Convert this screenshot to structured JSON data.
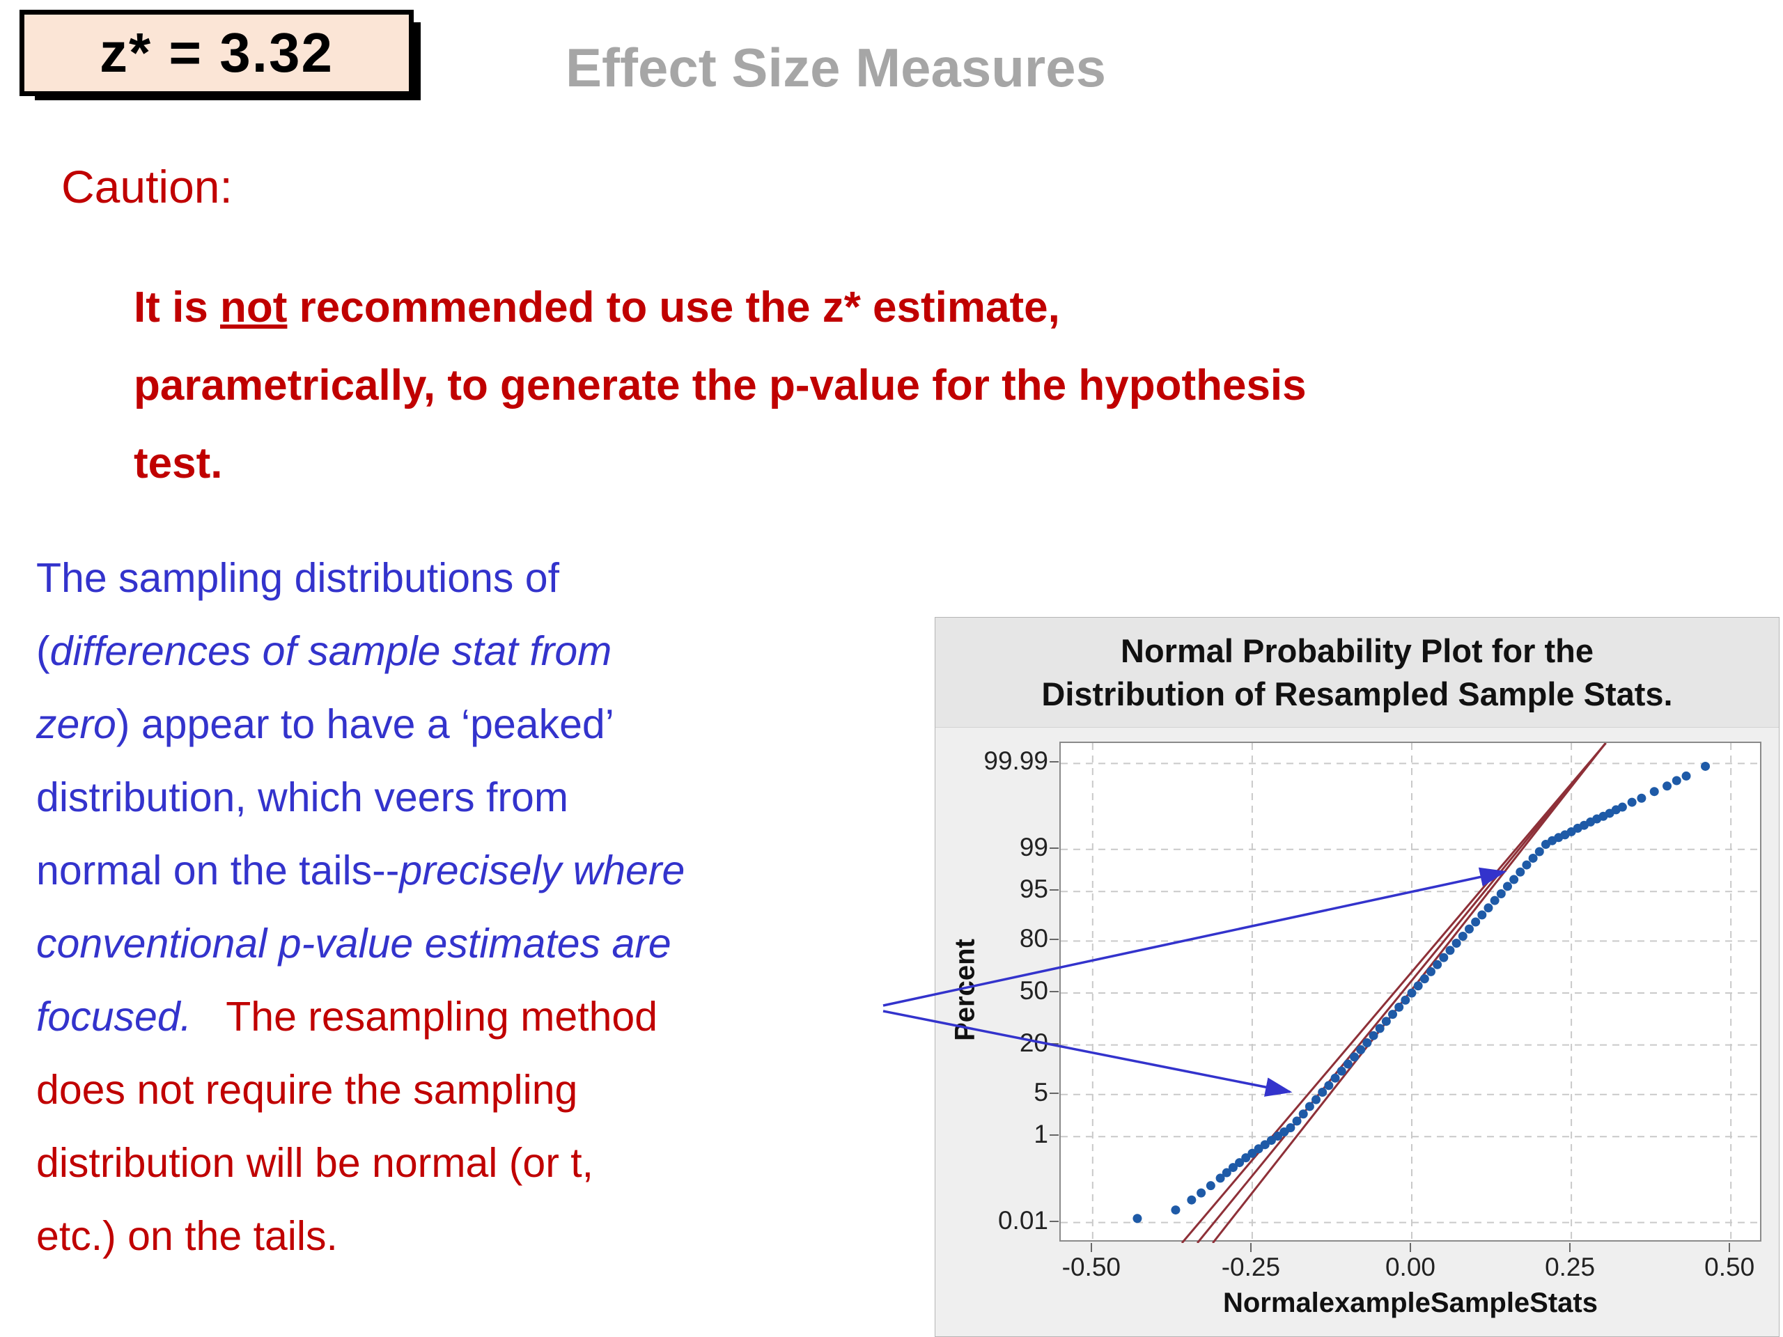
{
  "slide": {
    "z_box": "z* = 3.32",
    "title": "Effect Size Measures",
    "caution_label": "Caution:",
    "caution_lines": [
      [
        {
          "t": "It is "
        },
        {
          "t": "not",
          "u": true
        },
        {
          "t": " recommended to use the z* estimate,"
        }
      ],
      [
        {
          "t": "parametrically, to generate the p-value for the hypothesis"
        }
      ],
      [
        {
          "t": "test."
        }
      ]
    ],
    "body_lines": [
      [
        {
          "t": "The sampling distributions of",
          "c": "blue"
        }
      ],
      [
        {
          "t": "(",
          "c": "blue"
        },
        {
          "t": "differences of sample stat from",
          "c": "blue",
          "i": true
        }
      ],
      [
        {
          "t": "zero",
          "c": "blue",
          "i": true
        },
        {
          "t": ") appear to have a ‘peaked’",
          "c": "blue"
        }
      ],
      [
        {
          "t": "distribution, which veers from",
          "c": "blue"
        }
      ],
      [
        {
          "t": "normal on the tails--",
          "c": "blue"
        },
        {
          "t": "precisely where",
          "c": "blue",
          "i": true
        }
      ],
      [
        {
          "t": "conventional p-value estimates are",
          "c": "blue",
          "i": true
        }
      ],
      [
        {
          "t": "focused.",
          "c": "blue",
          "i": true
        },
        {
          "t": "   The resampling method",
          "c": "red"
        }
      ],
      [
        {
          "t": "does not require the sampling",
          "c": "red"
        }
      ],
      [
        {
          "t": "distribution will be normal (or t,",
          "c": "red"
        }
      ],
      [
        {
          "t": "etc.) on the tails.",
          "c": "red"
        }
      ]
    ]
  },
  "colors": {
    "accent_red": "#c00000",
    "accent_blue": "#3333cc",
    "title_gray": "#a6a6a6",
    "zbox_bg": "#fbe5d6",
    "dot_blue": "#1e5aa7",
    "refline_red": "#8e3038",
    "grid_gray": "#c9c9c9"
  },
  "chart_data": {
    "type": "scatter",
    "title": "Normal Probability Plot for the Distribution of Resampled Sample Stats.",
    "title_line1": "Normal Probability Plot for the",
    "title_line2": "Distribution of Resampled Sample Stats.",
    "xlabel": "NormalexampleSampleStats",
    "ylabel": "Percent",
    "x_tick_labels": [
      "-0.50",
      "-0.25",
      "0.00",
      "0.25",
      "0.50"
    ],
    "y_tick_labels": [
      "99.99",
      "99",
      "95",
      "80",
      "50",
      "20",
      "5",
      "1",
      "0.01"
    ],
    "x_range": [
      -0.55,
      0.55
    ],
    "y_scale": "normal-probability",
    "legend": "none",
    "grid": "dashed",
    "points": [
      [
        -0.43,
        0.013
      ],
      [
        -0.37,
        0.022
      ],
      [
        -0.345,
        0.04
      ],
      [
        -0.33,
        0.06
      ],
      [
        -0.315,
        0.09
      ],
      [
        -0.3,
        0.135
      ],
      [
        -0.29,
        0.18
      ],
      [
        -0.28,
        0.235
      ],
      [
        -0.27,
        0.3
      ],
      [
        -0.26,
        0.38
      ],
      [
        -0.25,
        0.47
      ],
      [
        -0.24,
        0.58
      ],
      [
        -0.23,
        0.7
      ],
      [
        -0.22,
        0.85
      ],
      [
        -0.21,
        1.02
      ],
      [
        -0.2,
        1.22
      ],
      [
        -0.19,
        1.45
      ],
      [
        -0.18,
        1.9
      ],
      [
        -0.17,
        2.5
      ],
      [
        -0.16,
        3.3
      ],
      [
        -0.15,
        4.2
      ],
      [
        -0.14,
        5.4
      ],
      [
        -0.13,
        6.7
      ],
      [
        -0.12,
        8.4
      ],
      [
        -0.11,
        10.3
      ],
      [
        -0.1,
        12.5
      ],
      [
        -0.09,
        15.0
      ],
      [
        -0.08,
        17.9
      ],
      [
        -0.07,
        21.0
      ],
      [
        -0.06,
        24.5
      ],
      [
        -0.05,
        28.3
      ],
      [
        -0.04,
        32.3
      ],
      [
        -0.03,
        36.5
      ],
      [
        -0.02,
        40.9
      ],
      [
        -0.01,
        45.4
      ],
      [
        0.0,
        50.0
      ],
      [
        0.01,
        54.6
      ],
      [
        0.02,
        59.1
      ],
      [
        0.03,
        63.5
      ],
      [
        0.04,
        67.7
      ],
      [
        0.05,
        71.7
      ],
      [
        0.06,
        75.5
      ],
      [
        0.07,
        79.0
      ],
      [
        0.08,
        82.1
      ],
      [
        0.09,
        85.0
      ],
      [
        0.1,
        87.5
      ],
      [
        0.11,
        89.7
      ],
      [
        0.12,
        91.6
      ],
      [
        0.13,
        93.3
      ],
      [
        0.14,
        94.6
      ],
      [
        0.15,
        95.8
      ],
      [
        0.16,
        96.7
      ],
      [
        0.17,
        97.5
      ],
      [
        0.18,
        98.1
      ],
      [
        0.19,
        98.55
      ],
      [
        0.2,
        98.9
      ],
      [
        0.21,
        99.2
      ],
      [
        0.22,
        99.32
      ],
      [
        0.23,
        99.41
      ],
      [
        0.24,
        99.48
      ],
      [
        0.25,
        99.55
      ],
      [
        0.26,
        99.62
      ],
      [
        0.27,
        99.67
      ],
      [
        0.28,
        99.72
      ],
      [
        0.29,
        99.76
      ],
      [
        0.3,
        99.79
      ],
      [
        0.31,
        99.82
      ],
      [
        0.32,
        99.85
      ],
      [
        0.33,
        99.87
      ],
      [
        0.345,
        99.9
      ],
      [
        0.36,
        99.92
      ],
      [
        0.38,
        99.945
      ],
      [
        0.4,
        99.96
      ],
      [
        0.415,
        99.971
      ],
      [
        0.43,
        99.978
      ],
      [
        0.46,
        99.988
      ]
    ],
    "reference_lines": [
      {
        "slope": 0.076,
        "intercept": -0.004
      },
      {
        "slope": 0.079,
        "intercept": -0.016
      },
      {
        "slope": 0.082,
        "intercept": -0.028
      }
    ]
  }
}
